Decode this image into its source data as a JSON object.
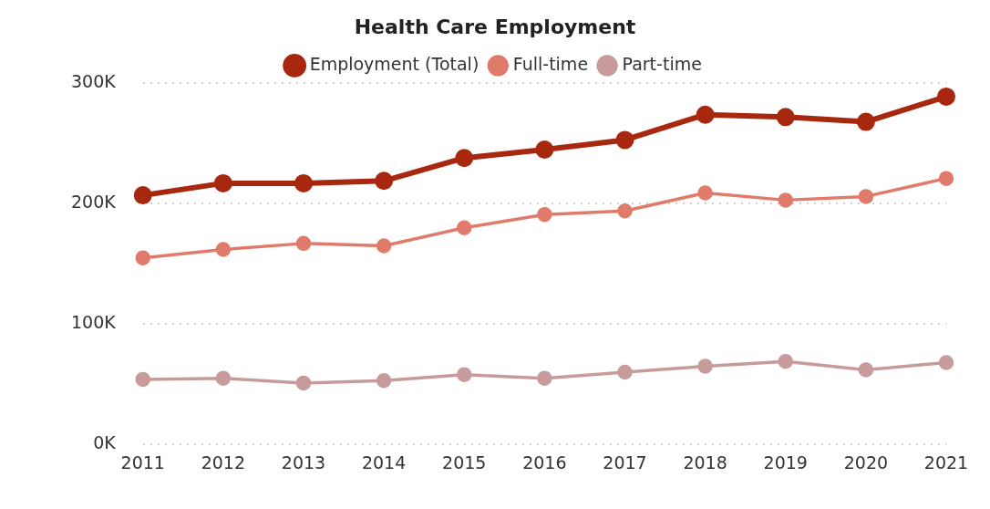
{
  "chart_data": {
    "type": "line",
    "title": "Health Care Employment",
    "categories": [
      "2011",
      "2012",
      "2013",
      "2014",
      "2015",
      "2016",
      "2017",
      "2018",
      "2019",
      "2020",
      "2021"
    ],
    "series": [
      {
        "name": "Employment (Total)",
        "color": "#a8280f",
        "values": [
          207000,
          217000,
          217000,
          219000,
          238000,
          245000,
          253000,
          274000,
          272000,
          268000,
          289000
        ]
      },
      {
        "name": "Full-time",
        "color": "#e07b6c",
        "values": [
          155000,
          162000,
          167000,
          165000,
          180000,
          191000,
          194000,
          209000,
          203000,
          206000,
          221000
        ]
      },
      {
        "name": "Part-time",
        "color": "#c79b9b",
        "values": [
          54000,
          55000,
          51000,
          53000,
          58000,
          55000,
          60000,
          65000,
          69000,
          62000,
          68000
        ]
      }
    ],
    "ylim": [
      0,
      300000
    ],
    "yticks": [
      {
        "value": 0,
        "label": "0K"
      },
      {
        "value": 100000,
        "label": "100K"
      },
      {
        "value": 200000,
        "label": "200K"
      },
      {
        "value": 300000,
        "label": "300K"
      }
    ],
    "grid": "y",
    "legend": "top",
    "marker": "circle",
    "line_style": "solid"
  }
}
